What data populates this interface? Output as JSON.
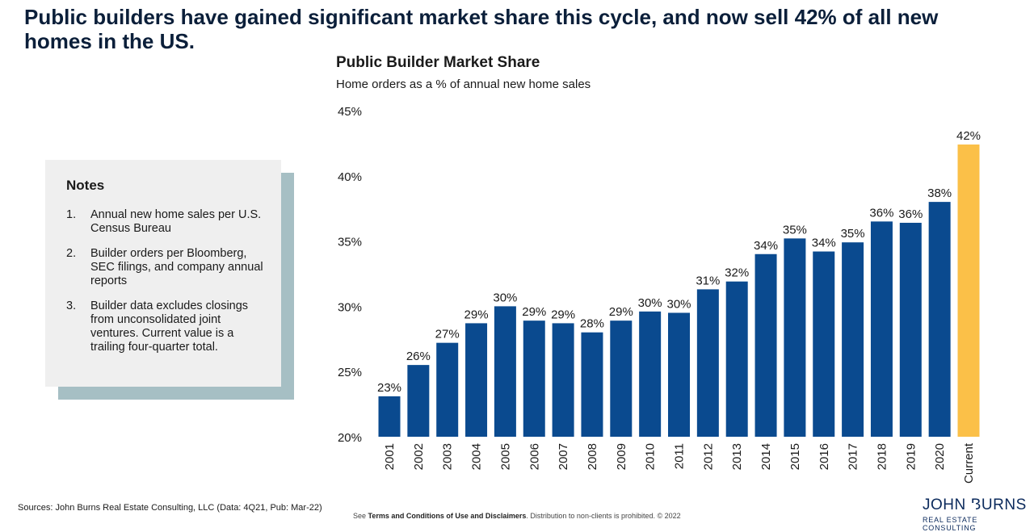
{
  "headline": "Public builders have gained significant market share this cycle, and now sell 42% of all new homes in the US.",
  "notes": {
    "title": "Notes",
    "items": [
      {
        "num": "1.",
        "text": "Annual new home sales per U.S. Census Bureau"
      },
      {
        "num": "2.",
        "text": "Builder orders per Bloomberg, SEC filings, and company annual reports"
      },
      {
        "num": "3.",
        "text": "Builder data excludes closings from unconsolidated joint ventures. Current value is a trailing four-quarter total."
      }
    ]
  },
  "chart_data": {
    "type": "bar",
    "title": "Public Builder Market Share",
    "subtitle": "Home orders as a % of annual new home sales",
    "xlabel": "",
    "ylabel": "",
    "ylim": [
      20,
      45
    ],
    "yticks": [
      20,
      25,
      30,
      35,
      40,
      45
    ],
    "ytick_labels": [
      "20%",
      "25%",
      "30%",
      "35%",
      "40%",
      "45%"
    ],
    "grid": false,
    "legend": "none",
    "categories": [
      "2001",
      "2002",
      "2003",
      "2004",
      "2005",
      "2006",
      "2007",
      "2008",
      "2009",
      "2010",
      "2011",
      "2012",
      "2013",
      "2014",
      "2015",
      "2016",
      "2017",
      "2018",
      "2019",
      "2020",
      "Current"
    ],
    "values": [
      23.1,
      25.5,
      27.2,
      28.7,
      30.0,
      28.9,
      28.7,
      28.0,
      28.9,
      29.6,
      29.5,
      31.3,
      31.9,
      34.0,
      35.2,
      34.2,
      34.9,
      36.5,
      36.4,
      38.0,
      42.4
    ],
    "data_labels": [
      "23%",
      "26%",
      "27%",
      "29%",
      "30%",
      "29%",
      "29%",
      "28%",
      "29%",
      "30%",
      "30%",
      "31%",
      "32%",
      "34%",
      "35%",
      "34%",
      "35%",
      "36%",
      "36%",
      "38%",
      "42%"
    ],
    "colors": {
      "bar": "#0a4a8f",
      "highlight": "#fbc048",
      "highlight_category": "Current"
    }
  },
  "footer": {
    "sources": "Sources: John Burns Real Estate Consulting, LLC (Data: 4Q21, Pub: Mar-22)",
    "disclaimer_prefix": "See ",
    "disclaimer_link": "Terms and Conditions of Use and Disclaimers",
    "disclaimer_suffix": ". Distribution to non-clients is prohibited. © 2022"
  },
  "logo": {
    "left": "JOHN",
    "right": "BURNS",
    "sub": "REAL ESTATE CONSULTING"
  }
}
